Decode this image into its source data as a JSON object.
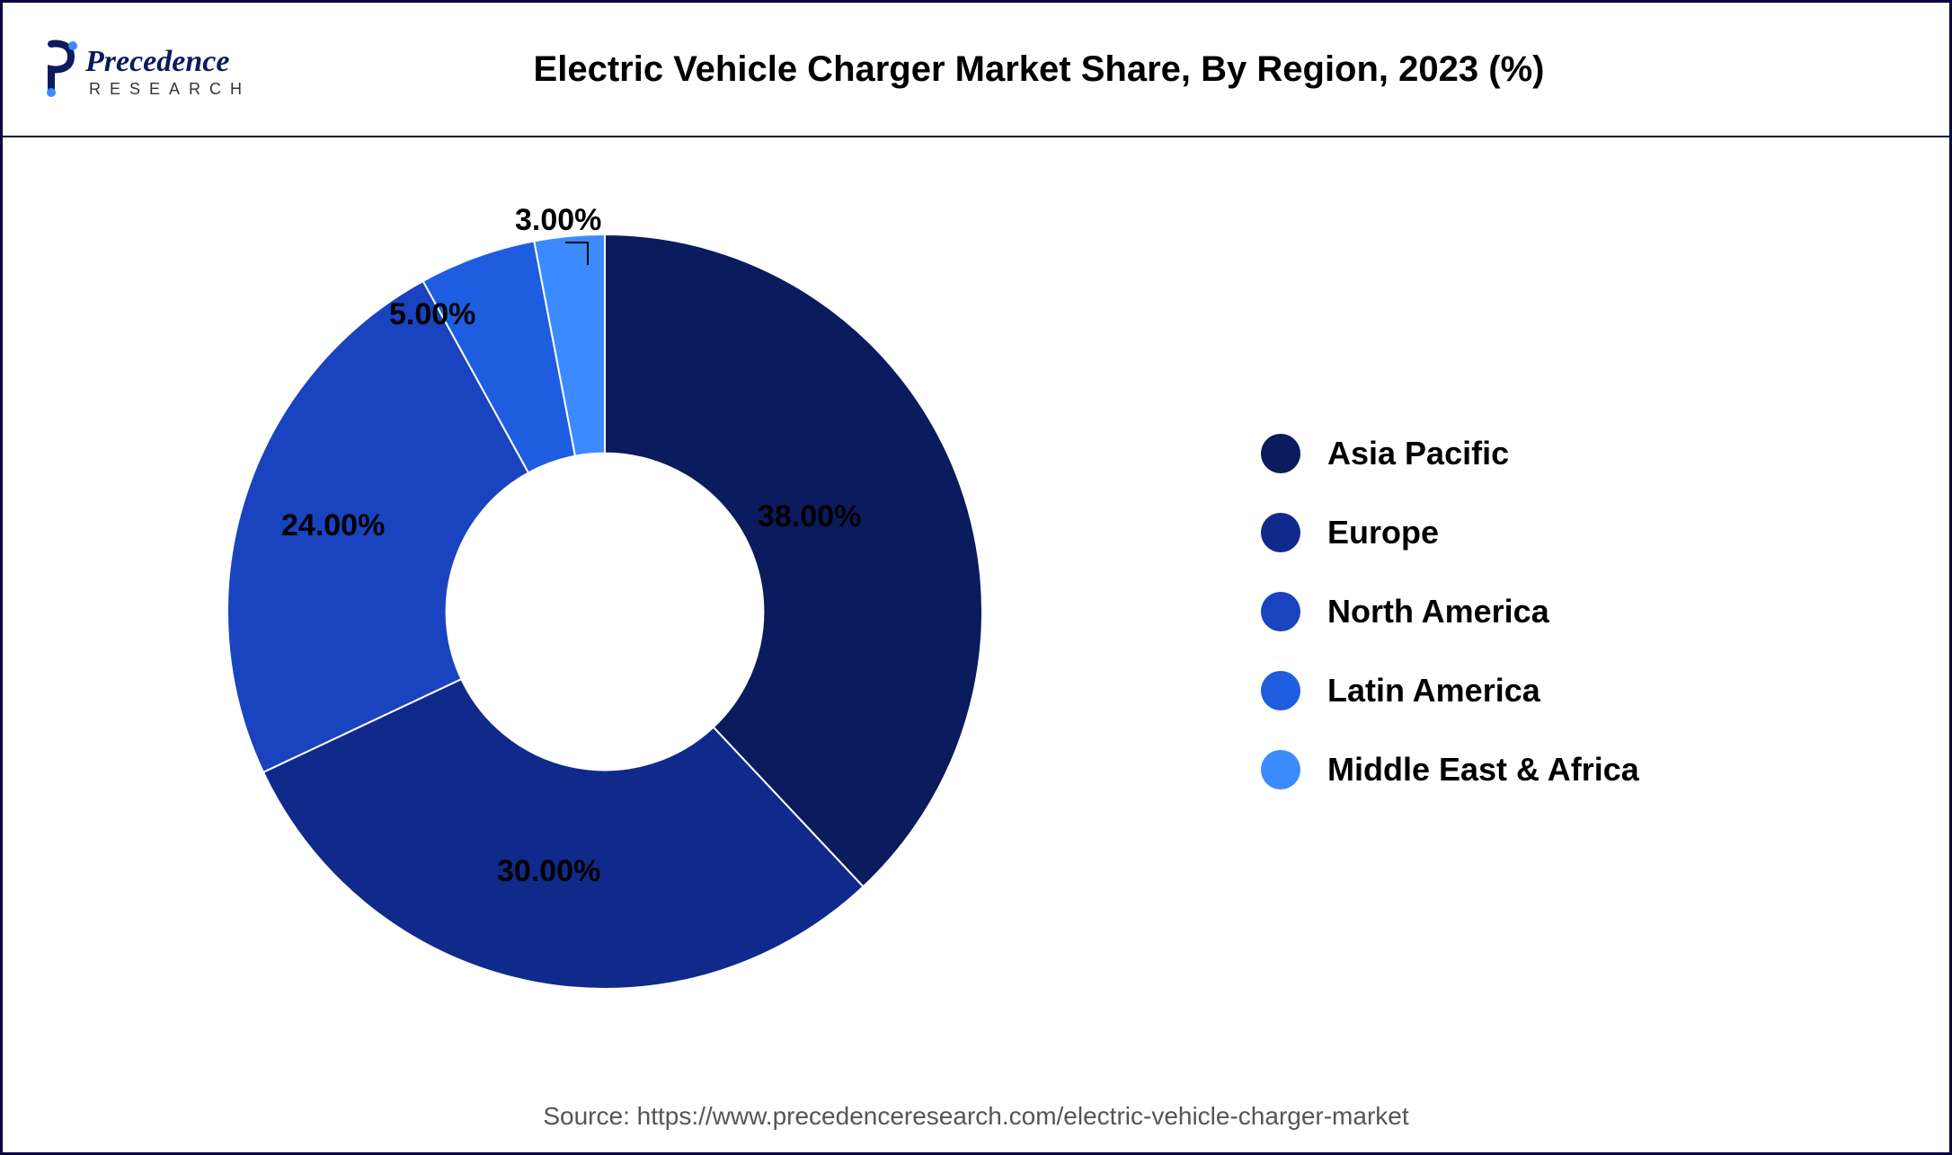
{
  "logo": {
    "brand": "Precedence",
    "sub": "RESEARCH"
  },
  "chart": {
    "type": "pie",
    "title": "Electric Vehicle Charger Market Share, By Region, 2023 (%)",
    "background_color": "#ffffff",
    "border_color": "#0a0a3a",
    "inner_radius_ratio": 0.42,
    "start_angle_deg": -90,
    "title_fontsize": 40,
    "label_fontsize": 34,
    "legend_fontsize": 36,
    "slices": [
      {
        "label": "Asia Pacific",
        "value": 38.0,
        "color": "#0a1b5e",
        "display": "38.00%"
      },
      {
        "label": "Europe",
        "value": 30.0,
        "color": "#102a8c",
        "display": "30.00%"
      },
      {
        "label": "North America",
        "value": 24.0,
        "color": "#1a43bf",
        "display": "24.00%"
      },
      {
        "label": "Latin America",
        "value": 5.0,
        "color": "#1f5de0",
        "display": "5.00%"
      },
      {
        "label": "Middle East & Africa",
        "value": 3.0,
        "color": "#3b8bff",
        "display": "3.00%"
      }
    ]
  },
  "source": {
    "prefix": "Source: ",
    "url": "https://www.precedenceresearch.com/electric-vehicle-charger-market"
  }
}
